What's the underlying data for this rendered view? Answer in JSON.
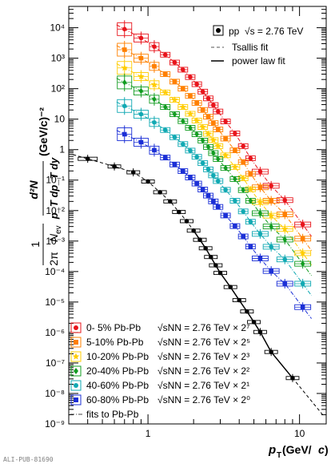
{
  "chart_data": {
    "type": "scatter",
    "x_scale": "log",
    "y_scale": "log",
    "xlim": [
      0.3,
      15
    ],
    "ylim": [
      1e-09,
      50000.0
    ],
    "x_title": {
      "prefix": "p",
      "subscript": "T",
      "suffix": " (GeV/",
      "unit_italic": "c",
      "close": ")"
    },
    "y_title": {
      "frac_num": "1",
      "frac_den_left": "2π",
      "frac_den_N": "N",
      "frac_den_ev": "ev",
      "d2N_num": "d²N",
      "d2N_den": "p_T dp_T dy",
      "units": "(GeV/c)⁻²"
    },
    "x_tick_labels": [
      "1",
      "10"
    ],
    "y_tick_labels": [
      "10⁴",
      "10³",
      "10²",
      "10",
      "1",
      "10⁻¹",
      "10⁻²",
      "10⁻³",
      "10⁻⁴",
      "10⁻⁵",
      "10⁻⁶",
      "10⁻⁷",
      "10⁻⁸",
      "10⁻⁹"
    ],
    "legend_pp": {
      "marker_label": "pp",
      "sqrt_s": "√s = 2.76 TeV",
      "tsallis": "Tsallis fit",
      "powerlaw": "power law fit"
    },
    "legend_pbpb": [
      {
        "centrality": "0- 5% Pb-Pb",
        "energy": "√sNN = 2.76 TeV × 2⁷",
        "color": "#e8141b",
        "marker": "circle"
      },
      {
        "centrality": "5-10% Pb-Pb",
        "energy": "√sNN = 2.76 TeV × 2⁵",
        "color": "#ff8000",
        "marker": "square"
      },
      {
        "centrality": "10-20% Pb-Pb",
        "energy": "√sNN = 2.76 TeV × 2³",
        "color": "#ffcc00",
        "marker": "star"
      },
      {
        "centrality": "20-40% Pb-Pb",
        "energy": "√sNN = 2.76 TeV × 2²",
        "color": "#119c20",
        "marker": "diamond"
      },
      {
        "centrality": "40-60% Pb-Pb",
        "energy": "√sNN = 2.76 TeV × 2¹",
        "color": "#11a9b3",
        "marker": "circle"
      },
      {
        "centrality": "60-80% Pb-Pb",
        "energy": "√sNN = 2.76 TeV × 2⁰",
        "color": "#1b2fd6",
        "marker": "square"
      }
    ],
    "legend_fits": "fits to Pb-Pb",
    "watermark": "ALI-PUB-81690",
    "series": [
      {
        "name": "pp √s = 2.76 TeV",
        "color": "#000000",
        "marker": "circle",
        "x": [
          0.4,
          0.6,
          0.8,
          1.0,
          1.2,
          1.4,
          1.6,
          1.8,
          2.0,
          2.2,
          2.4,
          2.6,
          2.8,
          3.0,
          3.5,
          4.0,
          4.5,
          5.0,
          5.5,
          6.5,
          9.0
        ],
        "y": [
          0.5,
          0.28,
          0.18,
          0.09,
          0.04,
          0.02,
          0.009,
          0.0045,
          0.0022,
          0.0011,
          0.00058,
          0.0003,
          0.00016,
          9e-05,
          3.1e-05,
          1.15e-05,
          4.9e-06,
          2.2e-06,
          1.04e-06,
          2.3e-07,
          3.2e-08
        ]
      },
      {
        "name": "0- 5% Pb-Pb",
        "color": "#e8141b",
        "marker": "circle",
        "x": [
          0.7,
          0.9,
          1.1,
          1.3,
          1.5,
          1.7,
          1.9,
          2.1,
          2.3,
          2.5,
          2.7,
          2.9,
          3.25,
          3.75,
          4.25,
          4.75,
          5.5,
          6.5,
          8.0,
          10.5
        ],
        "y": [
          9000,
          4600,
          2400,
          1300,
          720,
          420,
          240,
          140,
          80,
          48,
          29,
          17.8,
          8.4,
          3.4,
          1.3,
          0.52,
          0.19,
          0.065,
          0.022,
          0.0035
        ]
      },
      {
        "name": "5-10% Pb-Pb",
        "color": "#ff8000",
        "marker": "square",
        "x": [
          0.7,
          0.9,
          1.1,
          1.3,
          1.5,
          1.7,
          1.9,
          2.1,
          2.3,
          2.5,
          2.7,
          2.9,
          3.25,
          3.75,
          4.25,
          4.75,
          5.5,
          6.5,
          8.0,
          10.5
        ],
        "y": [
          1900,
          1000,
          540,
          300,
          170,
          100,
          58,
          34,
          20,
          12,
          7.4,
          4.6,
          2.3,
          0.95,
          0.39,
          0.16,
          0.058,
          0.021,
          0.0075,
          0.0012
        ]
      },
      {
        "name": "10-20% Pb-Pb",
        "color": "#ffcc00",
        "marker": "star",
        "x": [
          0.7,
          0.9,
          1.1,
          1.3,
          1.5,
          1.7,
          1.9,
          2.1,
          2.3,
          2.5,
          2.7,
          2.9,
          3.25,
          3.75,
          4.25,
          4.75,
          5.5,
          6.5,
          8.0,
          10.5
        ],
        "y": [
          480,
          250,
          134,
          75,
          43,
          25,
          15,
          9,
          5.5,
          3.3,
          2.05,
          1.3,
          0.65,
          0.27,
          0.115,
          0.05,
          0.019,
          0.0068,
          0.0025,
          0.0004
        ]
      },
      {
        "name": "20-40% Pb-Pb",
        "color": "#119c20",
        "marker": "diamond",
        "x": [
          0.7,
          0.9,
          1.1,
          1.3,
          1.5,
          1.7,
          1.9,
          2.1,
          2.3,
          2.5,
          2.7,
          2.9,
          3.25,
          3.75,
          4.25,
          4.75,
          5.5,
          6.5,
          8.0,
          10.5
        ],
        "y": [
          160,
          84,
          45,
          25,
          14.5,
          8.6,
          5.2,
          3.2,
          1.98,
          1.22,
          0.77,
          0.49,
          0.25,
          0.108,
          0.047,
          0.021,
          0.0082,
          0.003,
          0.00112,
          0.00018
        ]
      },
      {
        "name": "40-60% Pb-Pb",
        "color": "#11a9b3",
        "marker": "circle",
        "x": [
          0.7,
          0.9,
          1.1,
          1.3,
          1.5,
          1.7,
          1.9,
          2.1,
          2.3,
          2.5,
          2.7,
          2.9,
          3.25,
          3.75,
          4.25,
          4.75,
          5.5,
          6.5,
          8.0,
          10.5
        ],
        "y": [
          27,
          14.5,
          7.8,
          4.4,
          2.55,
          1.52,
          0.93,
          0.58,
          0.36,
          0.225,
          0.143,
          0.093,
          0.048,
          0.021,
          0.0094,
          0.0043,
          0.00172,
          0.00065,
          0.00025,
          4e-05
        ]
      },
      {
        "name": "60-80% Pb-Pb",
        "color": "#1b2fd6",
        "marker": "square",
        "x": [
          0.7,
          0.9,
          1.1,
          1.3,
          1.5,
          1.7,
          1.9,
          2.1,
          2.3,
          2.5,
          2.7,
          2.9,
          3.25,
          3.75,
          4.25,
          4.75,
          5.5,
          6.5,
          8.0,
          10.5
        ],
        "y": [
          3.2,
          1.75,
          0.96,
          0.55,
          0.325,
          0.197,
          0.122,
          0.077,
          0.049,
          0.031,
          0.02,
          0.0132,
          0.0069,
          0.0031,
          0.00142,
          0.00066,
          0.00027,
          0.000104,
          4e-05,
          6.8e-06
        ]
      }
    ]
  }
}
